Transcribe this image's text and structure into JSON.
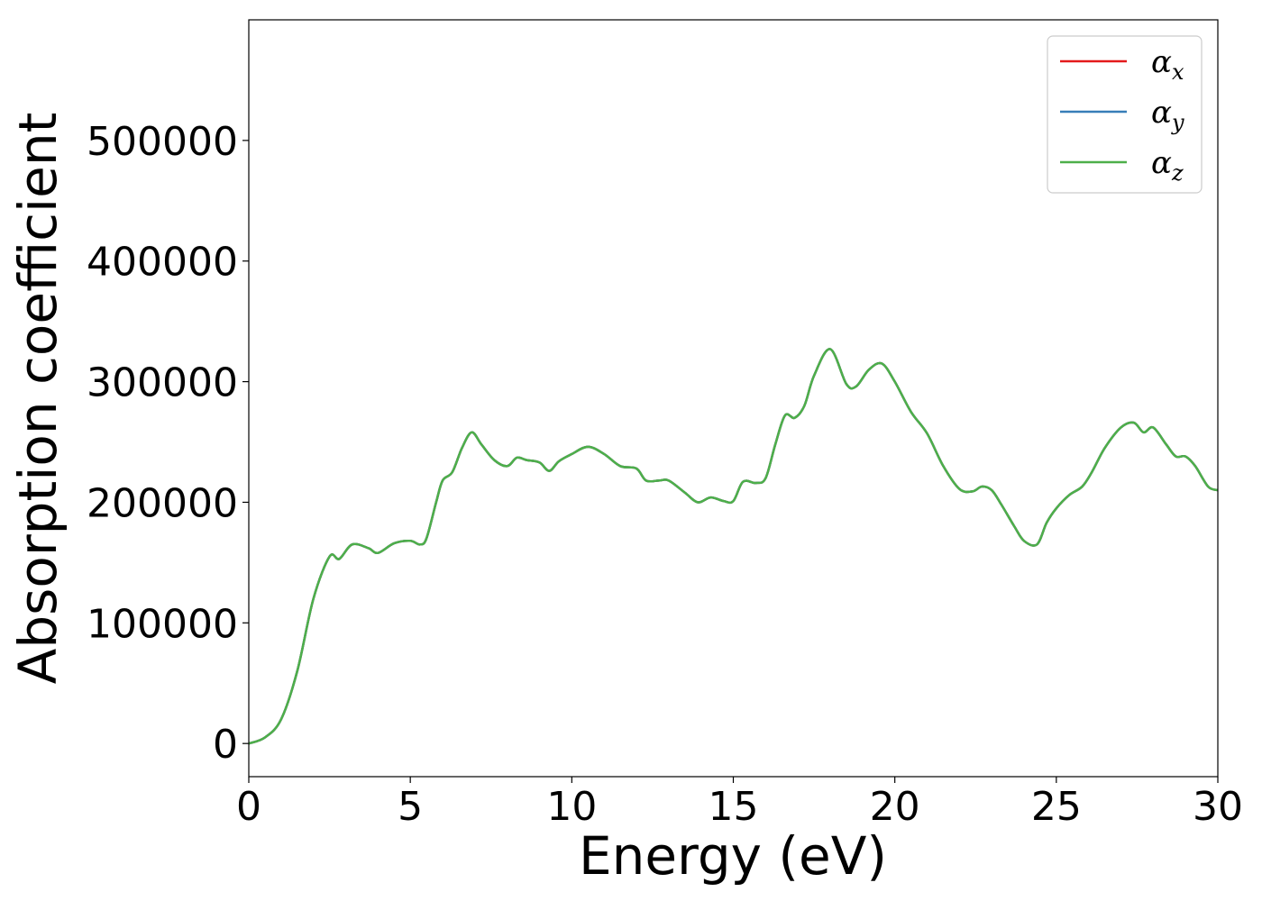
{
  "chart_data": {
    "type": "line",
    "xlabel": "Energy (eV)",
    "ylabel": "Absorption coefficient",
    "xlim": [
      0,
      30
    ],
    "ylim": [
      -27500,
      600000
    ],
    "xticks": [
      0,
      5,
      10,
      15,
      20,
      25,
      30
    ],
    "xtick_labels": [
      "0",
      "5",
      "10",
      "15",
      "20",
      "25",
      "30"
    ],
    "yticks": [
      0,
      100000,
      200000,
      300000,
      400000,
      500000
    ],
    "ytick_labels": [
      "0",
      "100000",
      "200000",
      "300000",
      "400000",
      "500000"
    ],
    "grid": false,
    "legend_position": "top-right",
    "x": [
      0,
      0.5,
      1.0,
      1.5,
      2.0,
      2.5,
      2.8,
      3.2,
      3.7,
      4.0,
      4.5,
      5.0,
      5.3,
      5.5,
      5.8,
      6.0,
      6.3,
      6.6,
      6.9,
      7.2,
      7.6,
      8.0,
      8.3,
      8.6,
      9.0,
      9.3,
      9.6,
      10.0,
      10.5,
      11.0,
      11.5,
      12.0,
      12.3,
      12.7,
      13.0,
      13.5,
      13.9,
      14.3,
      14.7,
      15.0,
      15.3,
      15.7,
      16.0,
      16.3,
      16.6,
      16.9,
      17.2,
      17.5,
      18.0,
      18.5,
      18.8,
      19.2,
      19.6,
      20.0,
      20.5,
      21.0,
      21.5,
      22.0,
      22.4,
      22.7,
      23.0,
      23.3,
      23.7,
      24.0,
      24.4,
      24.7,
      25.0,
      25.4,
      25.8,
      26.1,
      26.5,
      27.0,
      27.4,
      27.7,
      28.0,
      28.4,
      28.7,
      29.0,
      29.3,
      29.7,
      30.0
    ],
    "series": [
      {
        "name": "α_x",
        "color": "#e41a1c",
        "values": [
          0,
          5000,
          20000,
          60000,
          120000,
          155000,
          153000,
          165000,
          162000,
          158000,
          166000,
          168000,
          165000,
          170000,
          200000,
          218000,
          225000,
          245000,
          258000,
          248000,
          235000,
          230000,
          237000,
          235000,
          233000,
          226000,
          234000,
          240000,
          246000,
          240000,
          230000,
          228000,
          218000,
          218000,
          218000,
          208000,
          200000,
          204000,
          201000,
          201000,
          217000,
          216000,
          220000,
          248000,
          272000,
          270000,
          280000,
          305000,
          327000,
          298000,
          296000,
          310000,
          315000,
          300000,
          275000,
          257000,
          230000,
          211000,
          209000,
          213000,
          210000,
          198000,
          180000,
          168000,
          165000,
          183000,
          195000,
          206000,
          213000,
          225000,
          245000,
          262000,
          266000,
          258000,
          262000,
          248000,
          238000,
          238000,
          230000,
          213000,
          210000
        ]
      },
      {
        "name": "α_y",
        "color": "#377eb8",
        "values": [
          0,
          5000,
          20000,
          60000,
          120000,
          155000,
          153000,
          165000,
          162000,
          158000,
          166000,
          168000,
          165000,
          170000,
          200000,
          218000,
          225000,
          245000,
          258000,
          248000,
          235000,
          230000,
          237000,
          235000,
          233000,
          226000,
          234000,
          240000,
          246000,
          240000,
          230000,
          228000,
          218000,
          218000,
          218000,
          208000,
          200000,
          204000,
          201000,
          201000,
          217000,
          216000,
          220000,
          248000,
          272000,
          270000,
          280000,
          305000,
          327000,
          298000,
          296000,
          310000,
          315000,
          300000,
          275000,
          257000,
          230000,
          211000,
          209000,
          213000,
          210000,
          198000,
          180000,
          168000,
          165000,
          183000,
          195000,
          206000,
          213000,
          225000,
          245000,
          262000,
          266000,
          258000,
          262000,
          248000,
          238000,
          238000,
          230000,
          213000,
          210000
        ]
      },
      {
        "name": "α_z",
        "color": "#4daf4a",
        "values": [
          0,
          5000,
          20000,
          60000,
          120000,
          155000,
          153000,
          165000,
          162000,
          158000,
          166000,
          168000,
          165000,
          170000,
          200000,
          218000,
          225000,
          245000,
          258000,
          248000,
          235000,
          230000,
          237000,
          235000,
          233000,
          226000,
          234000,
          240000,
          246000,
          240000,
          230000,
          228000,
          218000,
          218000,
          218000,
          208000,
          200000,
          204000,
          201000,
          201000,
          217000,
          216000,
          220000,
          248000,
          272000,
          270000,
          280000,
          305000,
          327000,
          298000,
          296000,
          310000,
          315000,
          300000,
          275000,
          257000,
          230000,
          211000,
          209000,
          213000,
          210000,
          198000,
          180000,
          168000,
          165000,
          183000,
          195000,
          206000,
          213000,
          225000,
          245000,
          262000,
          266000,
          258000,
          262000,
          248000,
          238000,
          238000,
          230000,
          213000,
          210000
        ]
      }
    ],
    "legend": [
      {
        "symbol": "α",
        "sub": "x",
        "color": "#e41a1c"
      },
      {
        "symbol": "α",
        "sub": "y",
        "color": "#377eb8"
      },
      {
        "symbol": "α",
        "sub": "z",
        "color": "#4daf4a"
      }
    ]
  }
}
